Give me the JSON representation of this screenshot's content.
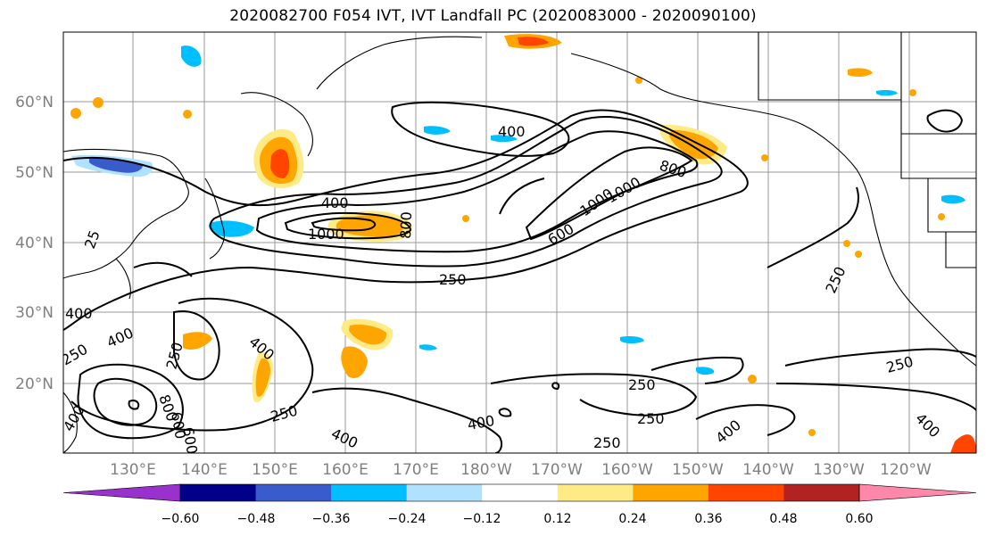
{
  "title": "2020082700 F054 IVT, IVT Landfall PC (2020083000 - 2020090100)",
  "lat_labels": [
    "60°N",
    "50°N",
    "40°N",
    "30°N",
    "20°N"
  ],
  "lon_labels": [
    "130°E",
    "140°E",
    "150°E",
    "160°E",
    "170°E",
    "180°W",
    "170°W",
    "160°W",
    "150°W",
    "140°W",
    "130°W",
    "120°W"
  ],
  "colorbar": {
    "colors": [
      "#9932cc",
      "#00008b",
      "#3a5bcc",
      "#00bfff",
      "#b0e2ff",
      "#ffffff",
      "#ffeb85",
      "#ffa500",
      "#ff4500",
      "#b22222",
      "#ff88aa"
    ],
    "tick_labels": [
      "−0.60",
      "−0.48",
      "−0.36",
      "−0.24",
      "−0.12",
      "0.12",
      "0.24",
      "0.36",
      "0.48",
      "0.60"
    ]
  },
  "contour_labels": [
    "400",
    "800",
    "1000",
    "400",
    "1000",
    "800",
    "600",
    "1000",
    "250",
    "400",
    "250",
    "400",
    "800",
    "600",
    "250",
    "400",
    "400",
    "250",
    "250",
    "250",
    "400",
    "250",
    "250",
    "400",
    "600",
    "400",
    "250",
    "25",
    "400"
  ]
}
